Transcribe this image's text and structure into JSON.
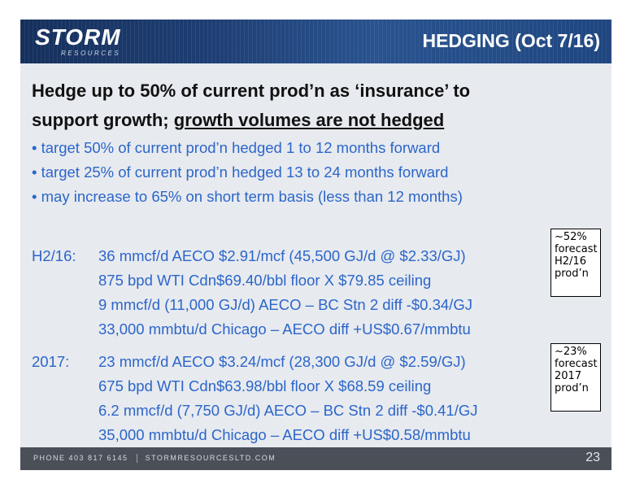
{
  "header": {
    "logo_main": "STORM",
    "logo_sub": "RESOURCES",
    "title": "HEDGING (Oct 7/16)"
  },
  "heading": {
    "line1": "Hedge up to 50% of current prod’n as ‘insurance’ to",
    "line2_plain": "support growth; ",
    "line2_underlined": "growth volumes are not hedged"
  },
  "bullets": [
    "• target 50% of current prod’n hedged 1 to 12 months forward",
    "• target 25% of current prod’n hedged 13 to 24 months forward",
    "• may increase to 65% on short term basis (less than 12 months)"
  ],
  "hedges": {
    "h2_2016": {
      "period": "H2/16:",
      "lines": [
        "36 mmcf/d AECO $2.91/mcf (45,500 GJ/d @ $2.33/GJ)",
        "875 bpd WTI Cdn$69.40/bbl floor X $79.85 ceiling",
        "9 mmcf/d (11,000 GJ/d) AECO – BC Stn 2 diff -$0.34/GJ",
        "33,000 mmbtu/d Chicago – AECO diff +US$0.67/mmbtu"
      ],
      "note": [
        "~52%",
        "forecast",
        "H2/16",
        "prod’n"
      ]
    },
    "y2017": {
      "period": "2017:",
      "lines": [
        "23 mmcf/d AECO $3.24/mcf (28,300 GJ/d @ $2.59/GJ)",
        "675 bpd WTI Cdn$63.98/bbl floor X $68.59 ceiling",
        "6.2 mmcf/d (7,750 GJ/d) AECO – BC Stn 2 diff -$0.41/GJ",
        "35,000 mmbtu/d Chicago – AECO diff +US$0.58/mmbtu"
      ],
      "note": [
        "~23%",
        "forecast",
        "2017",
        "prod’n"
      ]
    }
  },
  "footer": {
    "phone": "PHONE 403 817 6145",
    "website": "STORMRESOURCESLTD.COM",
    "page_number": "23"
  },
  "colors": {
    "header_bg": "#1d3d72",
    "body_text_blue": "#2c66c9",
    "slide_bg": "#e7eaef",
    "footer_bg": "#4a4f58"
  }
}
